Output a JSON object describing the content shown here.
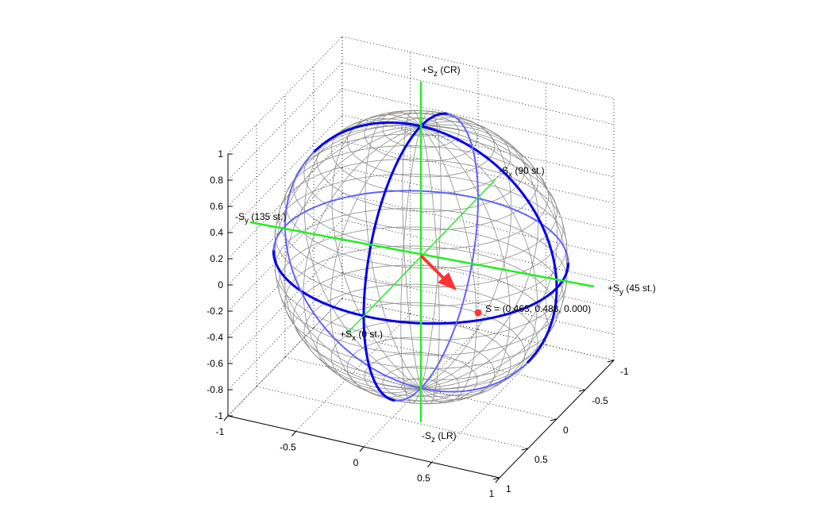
{
  "chart_data": {
    "type": "3d-sphere",
    "grid": true,
    "x_ticks": [
      "-1",
      "-0.5",
      "0",
      "0.5",
      "1"
    ],
    "y_ticks": [
      "-1",
      "-0.5",
      "0",
      "0.5",
      "1"
    ],
    "z_ticks": [
      "-1",
      "-0.8",
      "-0.6",
      "-0.4",
      "-0.2",
      "0",
      "0.2",
      "0.4",
      "0.6",
      "0.8",
      "1"
    ],
    "xlim": [
      -1,
      1
    ],
    "ylim": [
      -1,
      1
    ],
    "zlim": [
      -1,
      1
    ],
    "axis_labels": {
      "plus_sz": {
        "pre": "+S",
        "sub": "z",
        "post": " (CR)"
      },
      "minus_sz": {
        "pre": "-S",
        "sub": "z",
        "post": " (LR)"
      },
      "plus_sy": {
        "pre": "+S",
        "sub": "y",
        "post": " (45 st.)"
      },
      "minus_sy": {
        "pre": "-S",
        "sub": "y",
        "post": " (135 st.)"
      },
      "plus_sx": {
        "pre": "+S",
        "sub": "x",
        "post": " (0 st.)"
      },
      "minus_sx": {
        "pre": "-S",
        "sub": "x",
        "post": " (90 st.)"
      }
    },
    "point": {
      "label": "S = (0.463, 0.488, 0.000)",
      "values": [
        0.463,
        0.488,
        0.0
      ],
      "color": "#ff3333"
    },
    "colors": {
      "mesh": "#8c8c8c",
      "great_circle": "#0000ee",
      "great_circle_back": "#6464ff",
      "axes": "#22ee22",
      "vector": "#ff3333"
    }
  }
}
